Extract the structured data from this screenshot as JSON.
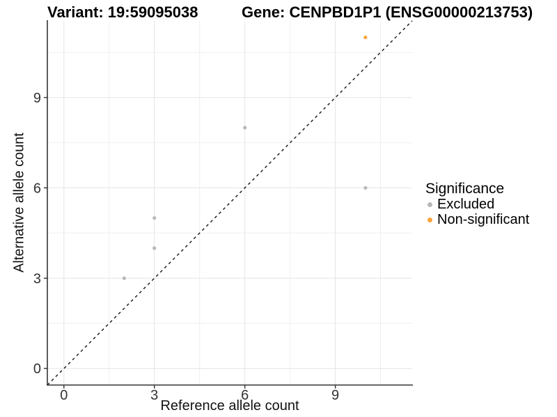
{
  "header": {
    "title_variant": "Variant: 19:59095038",
    "title_gene": "Gene: CENPBD1P1 (ENSG00000213753)"
  },
  "legend": {
    "title": "Significance",
    "items": [
      {
        "label": "Excluded",
        "color": "#B8B8B8"
      },
      {
        "label": "Non-significant",
        "color": "#FAA43A"
      }
    ]
  },
  "colors": {
    "excluded_point": "#B8B8B8",
    "non_significant_point": "#FAA43A",
    "axis_line": "#333333",
    "tick_label": "#333333",
    "grid_major": "#E4E4E4",
    "grid_minor": "#EFEFEF",
    "identity_line": "#111111",
    "background": "#FFFFFF"
  },
  "chart_data": {
    "type": "scatter",
    "title": "Variant: 19:59095038   Gene: CENPBD1P1 (ENSG00000213753)",
    "xlabel": "Reference allele count",
    "ylabel": "Alternative allele count",
    "xlim": [
      -0.55,
      11.55
    ],
    "ylim": [
      -0.55,
      11.55
    ],
    "x_ticks": [
      0,
      3,
      6,
      9
    ],
    "y_ticks": [
      0,
      3,
      6,
      9
    ],
    "x_minor_ticks": [
      1.5,
      4.5,
      7.5,
      10.5
    ],
    "y_minor_ticks": [
      1.5,
      4.5,
      7.5,
      10.5
    ],
    "grid": true,
    "identity_line": {
      "style": "dashed",
      "from": "y = x"
    },
    "legend_title": "Significance",
    "legend_position": "right",
    "series": [
      {
        "name": "Excluded",
        "color": "#B8B8B8",
        "points": [
          [
            2,
            3
          ],
          [
            3,
            4
          ],
          [
            3,
            5
          ],
          [
            6,
            8
          ],
          [
            10,
            6
          ]
        ]
      },
      {
        "name": "Non-significant",
        "color": "#FAA43A",
        "points": [
          [
            10,
            11
          ]
        ]
      }
    ]
  }
}
